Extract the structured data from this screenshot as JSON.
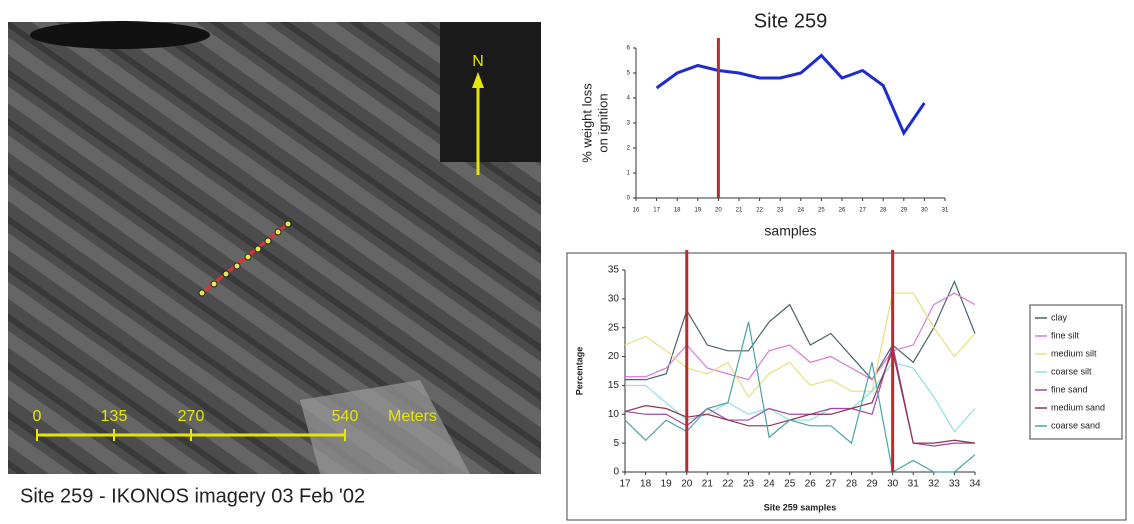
{
  "image": {
    "caption": "Site 259 - IKONOS imagery 03 Feb '02",
    "north": "N",
    "scale_labels": [
      0,
      135,
      270,
      540
    ],
    "scale_unit": "Meters"
  },
  "chart_data": [
    {
      "type": "line",
      "title": "Site 259",
      "ylabel": [
        "% weight loss",
        "on ignition"
      ],
      "xlabel": "samples",
      "x": [
        17,
        18,
        19,
        20,
        21,
        22,
        23,
        24,
        25,
        26,
        27,
        28,
        29,
        30
      ],
      "series": [
        {
          "color": "#1e2ccc",
          "values": [
            4.4,
            5.0,
            5.3,
            5.1,
            5.0,
            4.8,
            4.8,
            5.0,
            5.7,
            4.8,
            5.1,
            4.5,
            2.6,
            3.8
          ]
        }
      ],
      "xlim": [
        16,
        31
      ],
      "xticks": [
        16,
        17,
        18,
        19,
        20,
        21,
        22,
        23,
        24,
        25,
        26,
        27,
        28,
        29,
        30,
        31
      ],
      "ylim": [
        0,
        6
      ],
      "yticks": [
        0,
        1,
        2,
        3,
        4,
        5,
        6
      ],
      "vlines": [
        20
      ],
      "vline_color": "#c0282a"
    },
    {
      "type": "line",
      "ylabel": "Percentage",
      "xlabel": "Site 259 samples",
      "x": [
        17,
        18,
        19,
        20,
        21,
        22,
        23,
        24,
        25,
        26,
        27,
        28,
        29,
        30,
        31,
        32,
        33,
        34
      ],
      "series": [
        {
          "name": "clay",
          "color": "#4a6468",
          "values": [
            16,
            16,
            17,
            28,
            22,
            21,
            21,
            26,
            29,
            22,
            24,
            20,
            16,
            22,
            19,
            25,
            33,
            24
          ]
        },
        {
          "name": "fine silt",
          "color": "#d878d8",
          "values": [
            16.5,
            16.5,
            18,
            22,
            18,
            17,
            16,
            21,
            22,
            19,
            20,
            18,
            16,
            21,
            22,
            29,
            31,
            29
          ]
        },
        {
          "name": "medium silt",
          "color": "#e6e07a",
          "values": [
            22,
            23.5,
            21,
            18,
            17,
            19,
            13,
            17,
            19,
            15,
            16,
            14,
            14,
            31,
            31,
            25,
            20,
            24
          ]
        },
        {
          "name": "coarse silt",
          "color": "#8ee0e4",
          "values": [
            15,
            15,
            12,
            9,
            10,
            12,
            10,
            11,
            9,
            9,
            11,
            11,
            14,
            19,
            18,
            13,
            7,
            11
          ]
        },
        {
          "name": "fine sand",
          "color": "#a048a8",
          "values": [
            10.5,
            10,
            10,
            8,
            11,
            9,
            9,
            11,
            10,
            10,
            11,
            11,
            10,
            22,
            5,
            4.5,
            5,
            5
          ]
        },
        {
          "name": "medium sand",
          "color": "#8c3450",
          "values": [
            10.5,
            11.5,
            11,
            9.5,
            10,
            9,
            8,
            8,
            9,
            10,
            10,
            11,
            12,
            21,
            5,
            5,
            5.5,
            5
          ]
        },
        {
          "name": "coarse sand",
          "color": "#4aa4a4",
          "values": [
            9,
            5.5,
            9,
            7,
            11,
            12,
            26,
            6,
            9,
            8,
            8,
            5,
            19,
            0,
            2,
            0,
            0,
            3
          ]
        }
      ],
      "xlim": [
        17,
        34
      ],
      "xticks": [
        17,
        18,
        19,
        20,
        21,
        22,
        23,
        24,
        25,
        26,
        27,
        28,
        29,
        30,
        31,
        32,
        33,
        34
      ],
      "ylim": [
        0,
        35
      ],
      "yticks": [
        0,
        5,
        10,
        15,
        20,
        25,
        30,
        35
      ],
      "vlines": [
        20,
        30
      ],
      "vline_color": "#c0282a",
      "legend": "right"
    }
  ]
}
